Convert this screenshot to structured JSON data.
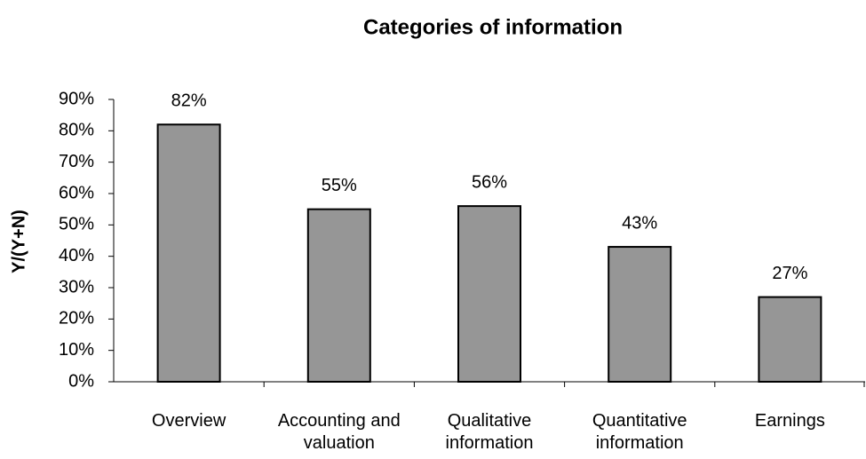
{
  "chart_data": {
    "type": "bar",
    "title": "Categories of information",
    "y_label": "Y/(Y+N)",
    "categories": [
      "Overview",
      "Accounting and valuation",
      "Qualitative information",
      "Quantitative information",
      "Earnings"
    ],
    "values": [
      82,
      55,
      56,
      43,
      27
    ],
    "value_labels": [
      "82%",
      "55%",
      "56%",
      "43%",
      "27%"
    ],
    "color": "#969696",
    "ylim": [
      0,
      90
    ],
    "yticks": [
      {
        "value": 0,
        "label": "0%"
      },
      {
        "value": 10,
        "label": "10%"
      },
      {
        "value": 20,
        "label": "20%"
      },
      {
        "value": 30,
        "label": "30%"
      },
      {
        "value": 40,
        "label": "40%"
      },
      {
        "value": 50,
        "label": "50%"
      },
      {
        "value": 60,
        "label": "60%"
      },
      {
        "value": 70,
        "label": "70%"
      },
      {
        "value": 80,
        "label": "80%"
      },
      {
        "value": 90,
        "label": "90%"
      }
    ],
    "grid": false
  }
}
